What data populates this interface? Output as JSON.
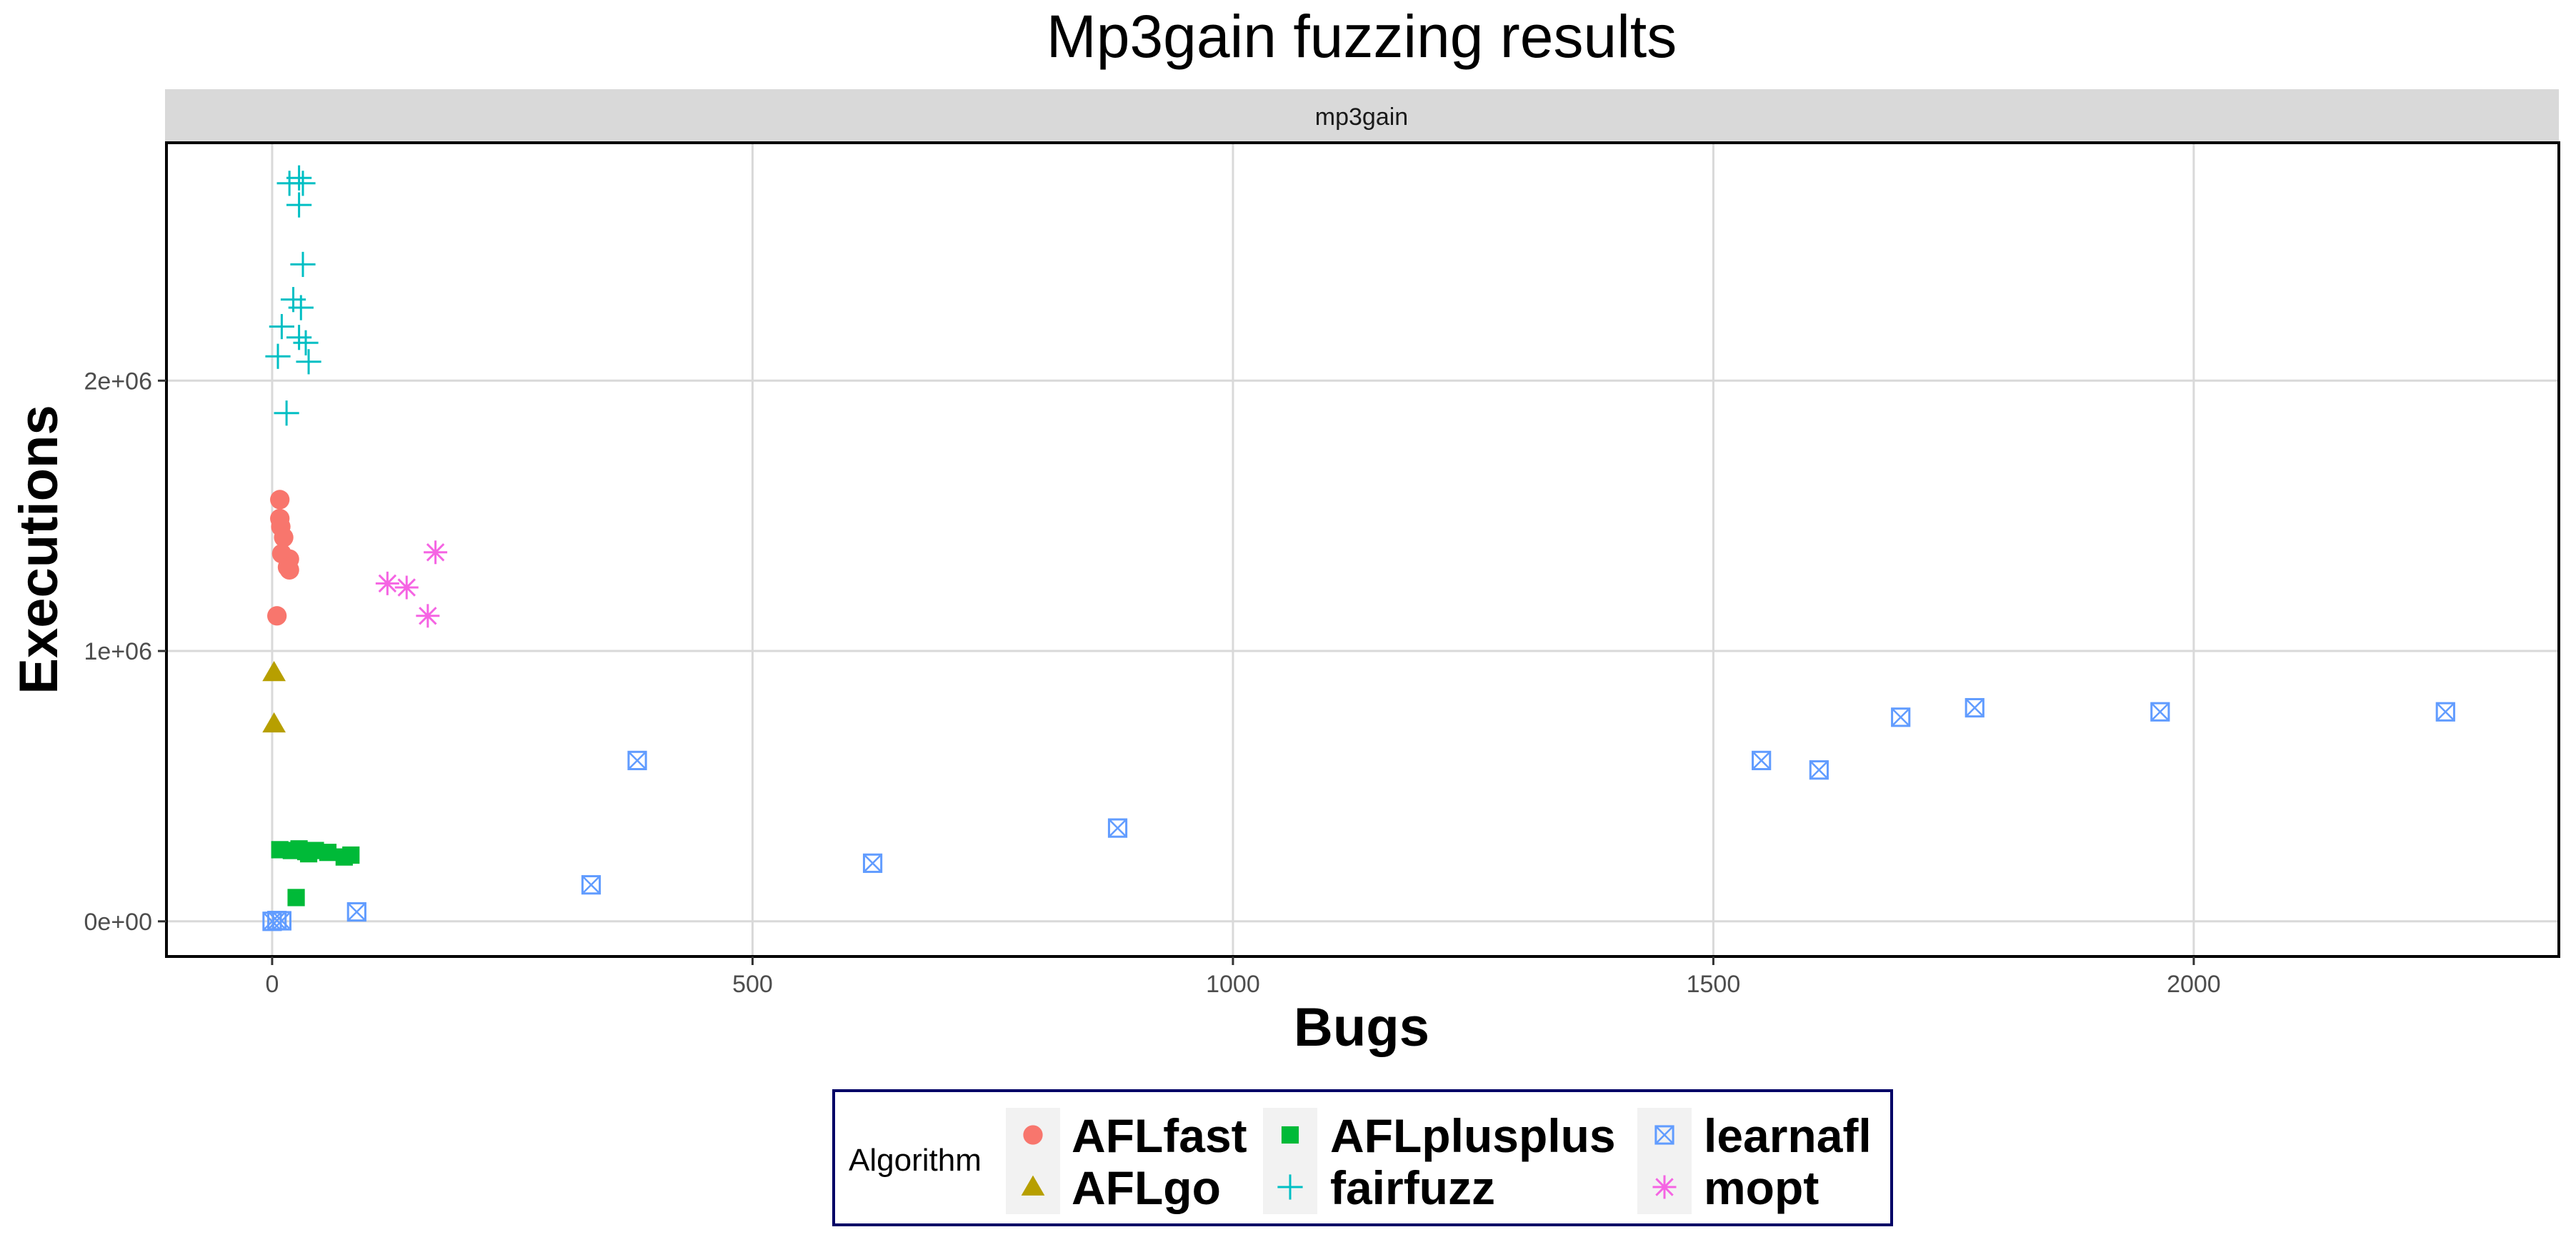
{
  "chart_data": {
    "type": "scatter",
    "title": "Mp3gain fuzzing results",
    "facet": "mp3gain",
    "xlabel": "Bugs",
    "ylabel": "Executions",
    "xlim": [
      -110,
      2380
    ],
    "ylim": [
      -130000,
      2880000
    ],
    "xticks": [
      0,
      500,
      1000,
      1500,
      2000
    ],
    "xtick_labels": [
      "0",
      "500",
      "1000",
      "1500",
      "2000"
    ],
    "yticks": [
      0,
      1000000,
      2000000
    ],
    "ytick_labels": [
      "0e+00",
      "1e+06",
      "2e+06"
    ],
    "grid": true,
    "legend": {
      "title": "Algorithm",
      "position": "bottom",
      "items": [
        "AFLfast",
        "AFLgo",
        "AFLplusplus",
        "fairfuzz",
        "learnafl",
        "mopt"
      ]
    },
    "series": [
      {
        "name": "AFLfast",
        "color": "#F8766D",
        "shape": "circle",
        "points": [
          [
            8,
            1560000
          ],
          [
            8,
            1490000
          ],
          [
            9,
            1460000
          ],
          [
            12,
            1420000
          ],
          [
            10,
            1360000
          ],
          [
            18,
            1340000
          ],
          [
            16,
            1310000
          ],
          [
            18,
            1300000
          ],
          [
            5,
            1130000
          ]
        ]
      },
      {
        "name": "AFLgo",
        "color": "#B79F00",
        "shape": "triangle",
        "points": [
          [
            2,
            920000
          ],
          [
            2,
            730000
          ]
        ]
      },
      {
        "name": "AFLplusplus",
        "color": "#00BA38",
        "shape": "square",
        "points": [
          [
            8,
            265000
          ],
          [
            20,
            262000
          ],
          [
            28,
            268000
          ],
          [
            35,
            258000
          ],
          [
            38,
            250000
          ],
          [
            45,
            262000
          ],
          [
            58,
            255000
          ],
          [
            75,
            238000
          ],
          [
            82,
            245000
          ],
          [
            25,
            88000
          ]
        ]
      },
      {
        "name": "fairfuzz",
        "color": "#00BFC4",
        "shape": "plus",
        "points": [
          [
            18,
            2730000
          ],
          [
            28,
            2750000
          ],
          [
            32,
            2730000
          ],
          [
            28,
            2650000
          ],
          [
            32,
            2430000
          ],
          [
            22,
            2300000
          ],
          [
            30,
            2270000
          ],
          [
            10,
            2200000
          ],
          [
            28,
            2160000
          ],
          [
            35,
            2140000
          ],
          [
            6,
            2090000
          ],
          [
            38,
            2070000
          ],
          [
            15,
            1880000
          ]
        ]
      },
      {
        "name": "learnafl",
        "color": "#619CFF",
        "shape": "boxcross",
        "points": [
          [
            0,
            0
          ],
          [
            5,
            3000
          ],
          [
            10,
            2000
          ],
          [
            88,
            35000
          ],
          [
            332,
            135000
          ],
          [
            380,
            595000
          ],
          [
            625,
            215000
          ],
          [
            880,
            345000
          ],
          [
            1550,
            595000
          ],
          [
            1610,
            560000
          ],
          [
            1695,
            755000
          ],
          [
            1772,
            790000
          ],
          [
            1965,
            775000
          ],
          [
            2262,
            775000
          ]
        ]
      },
      {
        "name": "mopt",
        "color": "#F564E3",
        "shape": "asterisk",
        "points": [
          [
            120,
            1250000
          ],
          [
            140,
            1235000
          ],
          [
            162,
            1130000
          ],
          [
            170,
            1365000
          ]
        ]
      }
    ]
  }
}
